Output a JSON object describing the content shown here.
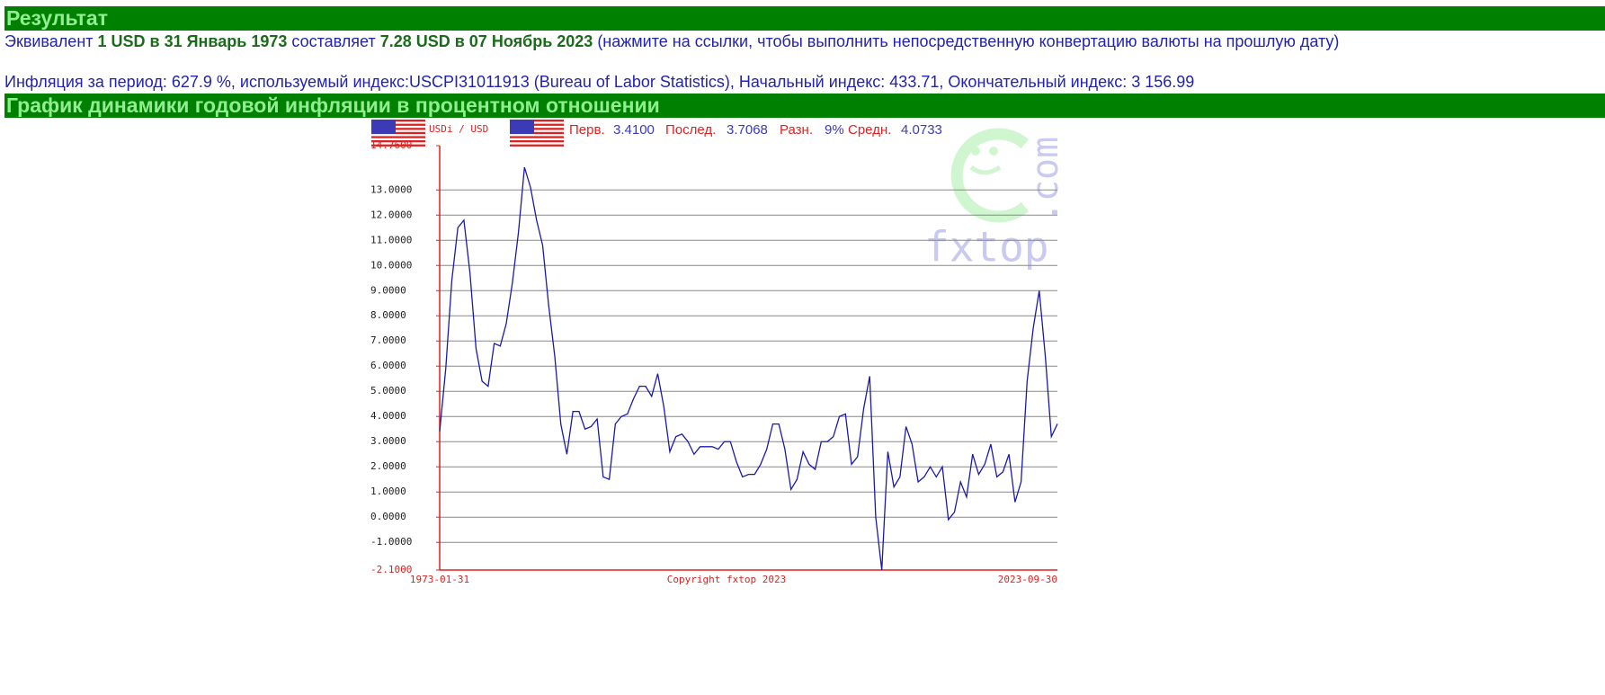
{
  "header": {
    "title": "Результат"
  },
  "result": {
    "prefix": "Эквивалент ",
    "from_link": "1 USD в 31 Январь 1973",
    "middle": " составляет ",
    "to_link": "7.28 USD в 07 Ноябрь 2023",
    "suffix": " (нажмите на ссылки, чтобы выполнить непосредственную конвертацию валюты на прошлую дату)"
  },
  "inflation_info": "Инфляция за период: 627.9 %, используемый индекс:USCPI31011913 (Bureau of Labor Statistics), Начальный индекс: 433.71, Окончательный индекс: 3 156.99",
  "section": {
    "title": "График динамики годовой инфляции в процентном отношении"
  },
  "chart_data": {
    "type": "line",
    "pair_label": "USDi / USD",
    "stats": [
      {
        "label": "Перв.",
        "value": "3.4100"
      },
      {
        "label": "Послед.",
        "value": "3.7068"
      },
      {
        "label": "Разн.",
        "value": "9%"
      },
      {
        "label": "Средн.",
        "value": "4.0733"
      }
    ],
    "copyright": "Copyright fxtop 2023",
    "watermark": [
      "fxtop",
      ".com"
    ],
    "color": "#1a1aa8",
    "grid": true,
    "ylim": [
      -2.1,
      14.76
    ],
    "yticks": [
      {
        "value": -2.1,
        "label": "-2.1000"
      },
      {
        "value": -1,
        "label": "-1.0000"
      },
      {
        "value": 0,
        "label": "0.0000"
      },
      {
        "value": 1,
        "label": "1.0000"
      },
      {
        "value": 2,
        "label": "2.0000"
      },
      {
        "value": 3,
        "label": "3.0000"
      },
      {
        "value": 4,
        "label": "4.0000"
      },
      {
        "value": 5,
        "label": "5.0000"
      },
      {
        "value": 6,
        "label": "6.0000"
      },
      {
        "value": 7,
        "label": "7.0000"
      },
      {
        "value": 8,
        "label": "8.0000"
      },
      {
        "value": 9,
        "label": "9.0000"
      },
      {
        "value": 10,
        "label": "10.0000"
      },
      {
        "value": 11,
        "label": "11.0000"
      },
      {
        "value": 12,
        "label": "12.0000"
      },
      {
        "value": 13,
        "label": "13.0000"
      },
      {
        "value": 14.76,
        "label": "14.7600"
      }
    ],
    "categories": [
      "1973-01-31",
      null,
      null,
      null,
      null,
      null,
      null,
      null,
      null,
      null,
      null,
      null,
      null,
      null,
      null,
      null,
      null,
      null,
      null,
      null,
      null,
      null,
      null,
      null,
      null,
      null,
      null,
      null,
      null,
      null,
      null,
      null,
      null,
      null,
      null,
      null,
      null,
      null,
      null,
      null,
      null,
      null,
      null,
      null,
      null,
      null,
      null,
      null,
      null,
      null,
      null,
      null,
      null,
      null,
      null,
      null,
      null,
      null,
      null,
      null,
      null,
      null,
      null,
      null,
      null,
      null,
      null,
      null,
      null,
      null,
      null,
      null,
      null,
      null,
      null,
      null,
      null,
      null,
      null,
      null,
      null,
      null,
      null,
      null,
      null,
      null,
      null,
      null,
      null,
      null,
      null,
      null,
      null,
      null,
      null,
      null,
      null,
      null,
      null,
      null,
      null,
      null,
      "2023-09-30"
    ],
    "values": [
      3.41,
      5.9,
      9.4,
      11.5,
      11.8,
      9.7,
      6.7,
      5.4,
      5.2,
      6.9,
      6.8,
      7.7,
      9.3,
      11.3,
      13.9,
      13.1,
      11.8,
      10.8,
      8.4,
      6.4,
      3.7,
      2.5,
      4.2,
      4.2,
      3.5,
      3.6,
      3.9,
      1.6,
      1.5,
      3.7,
      4.0,
      4.1,
      4.7,
      5.2,
      5.2,
      4.8,
      5.7,
      4.4,
      2.6,
      3.2,
      3.3,
      3.0,
      2.5,
      2.8,
      2.8,
      2.8,
      2.7,
      3.0,
      3.0,
      2.2,
      1.6,
      1.7,
      1.7,
      2.1,
      2.7,
      3.7,
      3.7,
      2.7,
      1.1,
      1.5,
      2.6,
      2.1,
      1.9,
      3.0,
      3.0,
      3.2,
      4.0,
      4.1,
      2.1,
      2.4,
      4.3,
      5.6,
      0.0,
      -2.1,
      2.6,
      1.2,
      1.6,
      3.6,
      2.9,
      1.4,
      1.6,
      2.0,
      1.6,
      2.0,
      -0.1,
      0.2,
      1.4,
      0.8,
      2.5,
      1.7,
      2.1,
      2.9,
      1.6,
      1.8,
      2.5,
      0.6,
      1.4,
      5.4,
      7.5,
      9.0,
      6.4,
      3.2,
      3.7068
    ]
  }
}
